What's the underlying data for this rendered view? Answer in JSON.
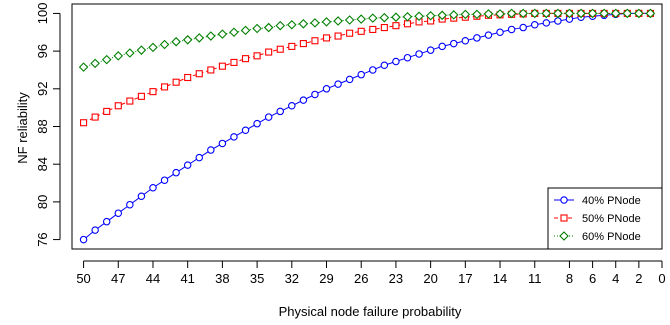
{
  "chart_data": {
    "type": "line",
    "title": "",
    "xlabel": "Physical node failure probability",
    "ylabel": "NF reliability",
    "x": [
      50,
      49,
      48,
      47,
      46,
      45,
      44,
      43,
      42,
      41,
      40,
      39,
      38,
      37,
      36,
      35,
      34,
      33,
      32,
      31,
      30,
      29,
      28,
      27,
      26,
      25,
      24,
      23,
      22,
      21,
      20,
      19,
      18,
      17,
      16,
      15,
      14,
      13,
      12,
      11,
      10,
      9,
      8,
      7,
      6,
      5,
      4,
      3,
      2,
      1
    ],
    "x_reversed": true,
    "xlim": [
      51,
      0
    ],
    "xticks": [
      50,
      47,
      44,
      41,
      38,
      35,
      32,
      29,
      26,
      23,
      20,
      17,
      14,
      11,
      8,
      6,
      4,
      2,
      0
    ],
    "ylim": [
      75,
      101
    ],
    "yticks": [
      76,
      80,
      84,
      88,
      92,
      96,
      100
    ],
    "grid": false,
    "legend_position": "bottom-right",
    "series": [
      {
        "name": "40% PNode",
        "color": "#0000ff",
        "marker": "circle",
        "line_style": "solid",
        "values": [
          76.0,
          77.0,
          77.9,
          78.8,
          79.7,
          80.6,
          81.5,
          82.3,
          83.1,
          83.9,
          84.7,
          85.5,
          86.2,
          86.9,
          87.6,
          88.3,
          89.0,
          89.6,
          90.2,
          90.8,
          91.4,
          92.0,
          92.5,
          93.0,
          93.5,
          94.0,
          94.5,
          94.9,
          95.3,
          95.7,
          96.1,
          96.5,
          96.8,
          97.1,
          97.4,
          97.7,
          98.0,
          98.3,
          98.5,
          98.8,
          99.0,
          99.2,
          99.4,
          99.6,
          99.7,
          99.8,
          99.9,
          100.0,
          100.0,
          100.0
        ]
      },
      {
        "name": "50% PNode",
        "color": "#ff0000",
        "marker": "square",
        "line_style": "dashed",
        "values": [
          88.4,
          89.0,
          89.6,
          90.2,
          90.7,
          91.2,
          91.7,
          92.2,
          92.7,
          93.2,
          93.6,
          94.0,
          94.4,
          94.8,
          95.2,
          95.5,
          95.9,
          96.2,
          96.5,
          96.8,
          97.1,
          97.4,
          97.6,
          97.9,
          98.1,
          98.3,
          98.5,
          98.7,
          98.9,
          99.1,
          99.2,
          99.4,
          99.5,
          99.6,
          99.7,
          99.8,
          99.85,
          99.9,
          99.95,
          100.0,
          100.0,
          100.0,
          100.0,
          100.0,
          100.0,
          100.0,
          100.0,
          100.0,
          100.0,
          100.0
        ]
      },
      {
        "name": "60% PNode",
        "color": "#008000",
        "marker": "diamond",
        "line_style": "dotted",
        "values": [
          94.3,
          94.7,
          95.1,
          95.5,
          95.8,
          96.1,
          96.4,
          96.7,
          97.0,
          97.2,
          97.4,
          97.6,
          97.8,
          98.0,
          98.2,
          98.4,
          98.5,
          98.7,
          98.8,
          98.9,
          99.0,
          99.1,
          99.2,
          99.3,
          99.4,
          99.5,
          99.55,
          99.6,
          99.65,
          99.7,
          99.75,
          99.8,
          99.85,
          99.9,
          99.9,
          99.95,
          99.95,
          100.0,
          100.0,
          100.0,
          100.0,
          100.0,
          100.0,
          100.0,
          100.0,
          100.0,
          100.0,
          100.0,
          100.0,
          100.0
        ]
      }
    ]
  }
}
